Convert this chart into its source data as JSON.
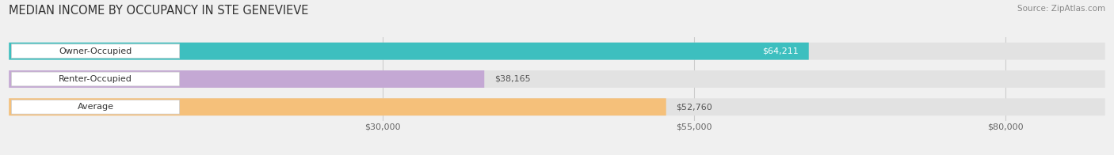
{
  "title": "MEDIAN INCOME BY OCCUPANCY IN STE GENEVIEVE",
  "source": "Source: ZipAtlas.com",
  "categories": [
    "Owner-Occupied",
    "Renter-Occupied",
    "Average"
  ],
  "values": [
    64211,
    38165,
    52760
  ],
  "bar_colors": [
    "#3dbfbf",
    "#c4a8d4",
    "#f5c07a"
  ],
  "bar_labels": [
    "$64,211",
    "$38,165",
    "$52,760"
  ],
  "value_inside": [
    true,
    false,
    false
  ],
  "x_ticks": [
    30000,
    55000,
    80000
  ],
  "x_tick_labels": [
    "$30,000",
    "$55,000",
    "$80,000"
  ],
  "xlim": [
    0,
    88000
  ],
  "background_color": "#f0f0f0",
  "bar_background_color": "#e2e2e2",
  "title_fontsize": 10.5,
  "source_fontsize": 7.5,
  "label_fontsize": 8,
  "tick_fontsize": 8
}
